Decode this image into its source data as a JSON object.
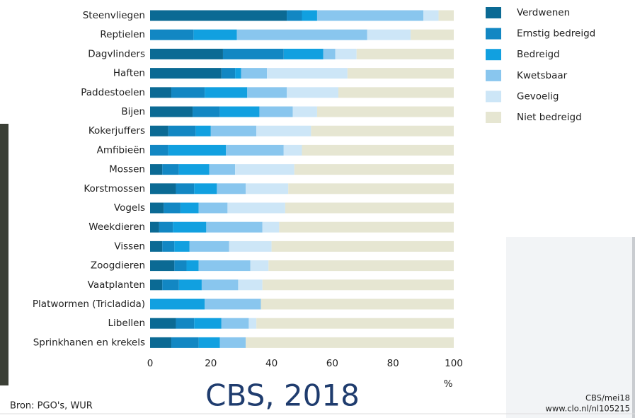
{
  "chart_data": {
    "type": "stacked-barh",
    "categories": [
      "Steenvliegen",
      "Reptielen",
      "Dagvlinders",
      "Haften",
      "Paddestoelen",
      "Bijen",
      "Kokerjuffers",
      "Amfibieën",
      "Mossen",
      "Korstmossen",
      "Vogels",
      "Weekdieren",
      "Vissen",
      "Zoogdieren",
      "Vaatplanten",
      "Platwormen (Tricladida)",
      "Libellen",
      "Sprinkhanen en krekels"
    ],
    "series": [
      {
        "name": "Verdwenen",
        "color": "#0b6a94",
        "values": [
          45,
          0,
          24,
          23.5,
          7,
          14,
          6,
          0,
          4,
          8.5,
          4.5,
          3,
          4,
          8,
          4,
          0,
          8.5,
          7
        ]
      },
      {
        "name": "Ernstig bedreigd",
        "color": "#1287c3",
        "values": [
          5,
          14.3,
          20,
          4.5,
          11,
          9,
          9,
          6,
          5.5,
          6,
          5.5,
          4.5,
          4,
          4,
          5.5,
          0,
          6,
          9
        ]
      },
      {
        "name": "Bedreigd",
        "color": "#11a0e0",
        "values": [
          5,
          14.3,
          13,
          2,
          14,
          13,
          5,
          19,
          10,
          7.5,
          6,
          11,
          5,
          4,
          7.5,
          18,
          9,
          7
        ]
      },
      {
        "name": "Kwetsbaar",
        "color": "#89c6ee",
        "values": [
          35,
          42.9,
          4,
          8.5,
          13,
          11,
          15,
          19,
          8.5,
          9.5,
          9.5,
          18.5,
          13,
          17,
          12,
          18.5,
          9,
          8.5
        ]
      },
      {
        "name": "Gevoelig",
        "color": "#cde6f7",
        "values": [
          5,
          14.3,
          7,
          26.5,
          17,
          8,
          18,
          6,
          19.5,
          14,
          19,
          5.5,
          14,
          6,
          8,
          0,
          2.5,
          0
        ]
      },
      {
        "name": "Niet bedreigd",
        "color": "#e6e6d2",
        "values": [
          5,
          14.2,
          32,
          35,
          38,
          45,
          47,
          50,
          52.5,
          54.5,
          55.5,
          57.5,
          60,
          61,
          63,
          63.5,
          65,
          68.5
        ]
      }
    ],
    "xlim": [
      0,
      100
    ],
    "xticks": [
      0,
      20,
      40,
      60,
      80,
      100
    ],
    "xlabel": "%",
    "legend": "right"
  },
  "overlay_title": "CBS, 2018",
  "source": "Bron: PGO's, WUR",
  "credit": "CBS/mei18",
  "url": "www.clo.nl/nl105215"
}
